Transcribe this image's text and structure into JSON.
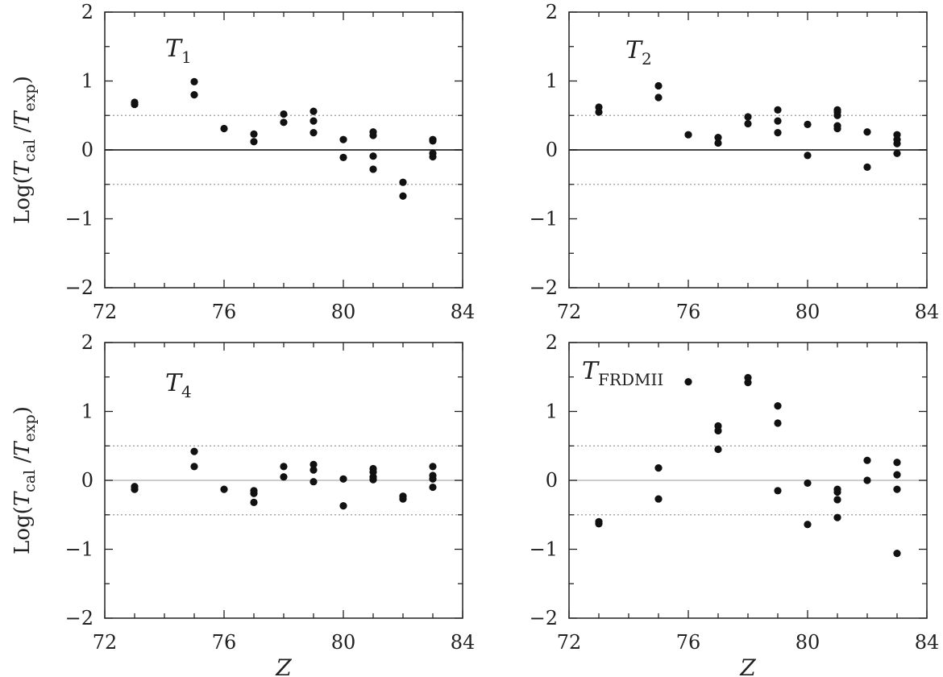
{
  "figure": {
    "ylabel_parts": {
      "pre": "Log(",
      "T1": "T",
      "s1": "cal",
      "mid": " /",
      "T2": "T",
      "s2": "exp",
      "post": ")"
    },
    "xlabel": "Z"
  },
  "chart_data": [
    {
      "type": "scatter",
      "title": {
        "main": "T",
        "sub": "1"
      },
      "xlim": [
        72,
        84
      ],
      "ylim": [
        -2,
        2
      ],
      "xticks": [
        72,
        76,
        80,
        84
      ],
      "yticks": [
        -2,
        -1,
        0,
        1,
        2
      ],
      "ytick_labels": [
        "−2",
        "−1",
        "0",
        "1",
        "2"
      ],
      "ref_lines": {
        "zero": 0,
        "dotted": [
          0.5,
          -0.5
        ],
        "zero_style": "solid-dark"
      },
      "points": [
        [
          73,
          0.66
        ],
        [
          73,
          0.69
        ],
        [
          75,
          0.8
        ],
        [
          75,
          0.99
        ],
        [
          76,
          0.31
        ],
        [
          77,
          0.12
        ],
        [
          77,
          0.23
        ],
        [
          78,
          0.4
        ],
        [
          78,
          0.52
        ],
        [
          79,
          0.25
        ],
        [
          79,
          0.42
        ],
        [
          79,
          0.56
        ],
        [
          80,
          0.15
        ],
        [
          80,
          -0.11
        ],
        [
          81,
          0.26
        ],
        [
          81,
          0.21
        ],
        [
          81,
          -0.09
        ],
        [
          81,
          -0.28
        ],
        [
          82,
          -0.47
        ],
        [
          82,
          -0.67
        ],
        [
          83,
          0.15
        ],
        [
          83,
          0.13
        ],
        [
          83,
          -0.05
        ],
        [
          83,
          -0.1
        ]
      ]
    },
    {
      "type": "scatter",
      "title": {
        "main": "T",
        "sub": "2"
      },
      "xlim": [
        72,
        84
      ],
      "ylim": [
        -2,
        2
      ],
      "xticks": [
        72,
        76,
        80,
        84
      ],
      "yticks": [
        -2,
        -1,
        0,
        1,
        2
      ],
      "ytick_labels": [
        "−2",
        "−1",
        "0",
        "1",
        "2"
      ],
      "ref_lines": {
        "zero": 0,
        "dotted": [
          0.5,
          -0.5
        ],
        "zero_style": "solid-dark"
      },
      "points": [
        [
          73,
          0.55
        ],
        [
          73,
          0.62
        ],
        [
          75,
          0.76
        ],
        [
          75,
          0.93
        ],
        [
          76,
          0.22
        ],
        [
          77,
          0.1
        ],
        [
          77,
          0.18
        ],
        [
          78,
          0.38
        ],
        [
          78,
          0.48
        ],
        [
          79,
          0.25
        ],
        [
          79,
          0.42
        ],
        [
          79,
          0.58
        ],
        [
          80,
          0.37
        ],
        [
          80,
          -0.08
        ],
        [
          81,
          0.58
        ],
        [
          81,
          0.55
        ],
        [
          81,
          0.5
        ],
        [
          81,
          0.35
        ],
        [
          81,
          0.31
        ],
        [
          82,
          0.26
        ],
        [
          82,
          -0.25
        ],
        [
          83,
          0.22
        ],
        [
          83,
          0.15
        ],
        [
          83,
          0.09
        ],
        [
          83,
          -0.05
        ]
      ]
    },
    {
      "type": "scatter",
      "title": {
        "main": "T",
        "sub": "4"
      },
      "xlim": [
        72,
        84
      ],
      "ylim": [
        -2,
        2
      ],
      "xticks": [
        72,
        76,
        80,
        84
      ],
      "yticks": [
        -2,
        -1,
        0,
        1,
        2
      ],
      "ytick_labels": [
        "−2",
        "−1",
        "0",
        "1",
        "2"
      ],
      "ref_lines": {
        "zero": 0,
        "dotted": [
          0.5,
          -0.5
        ],
        "zero_style": "solid-light"
      },
      "points": [
        [
          73,
          -0.09
        ],
        [
          73,
          -0.13
        ],
        [
          75,
          0.42
        ],
        [
          75,
          0.2
        ],
        [
          76,
          -0.13
        ],
        [
          77,
          -0.15
        ],
        [
          77,
          -0.19
        ],
        [
          77,
          -0.32
        ],
        [
          78,
          0.2
        ],
        [
          78,
          0.05
        ],
        [
          79,
          0.23
        ],
        [
          79,
          0.15
        ],
        [
          79,
          -0.02
        ],
        [
          80,
          0.02
        ],
        [
          80,
          -0.37
        ],
        [
          81,
          0.17
        ],
        [
          81,
          0.12
        ],
        [
          81,
          0.05
        ],
        [
          81,
          0.01
        ],
        [
          82,
          -0.23
        ],
        [
          82,
          -0.27
        ],
        [
          83,
          0.2
        ],
        [
          83,
          0.07
        ],
        [
          83,
          0.02
        ],
        [
          83,
          -0.1
        ]
      ]
    },
    {
      "type": "scatter",
      "title": {
        "main": "T",
        "sub": "FRDMII"
      },
      "xlim": [
        72,
        84
      ],
      "ylim": [
        -2,
        2
      ],
      "xticks": [
        72,
        76,
        80,
        84
      ],
      "yticks": [
        -2,
        -1,
        0,
        1,
        2
      ],
      "ytick_labels": [
        "−2",
        "−1",
        "0",
        "1",
        "2"
      ],
      "ref_lines": {
        "zero": 0,
        "dotted": [
          0.5,
          -0.5
        ],
        "zero_style": "solid-light"
      },
      "points": [
        [
          73,
          -0.6
        ],
        [
          73,
          -0.63
        ],
        [
          75,
          0.18
        ],
        [
          75,
          -0.27
        ],
        [
          76,
          1.43
        ],
        [
          77,
          0.79
        ],
        [
          77,
          0.72
        ],
        [
          77,
          0.45
        ],
        [
          78,
          1.49
        ],
        [
          78,
          1.42
        ],
        [
          79,
          1.08
        ],
        [
          79,
          0.83
        ],
        [
          79,
          -0.15
        ],
        [
          80,
          -0.04
        ],
        [
          80,
          -0.64
        ],
        [
          81,
          -0.13
        ],
        [
          81,
          -0.17
        ],
        [
          81,
          -0.28
        ],
        [
          81,
          -0.54
        ],
        [
          82,
          0.29
        ],
        [
          82,
          0.0
        ],
        [
          83,
          0.26
        ],
        [
          83,
          0.08
        ],
        [
          83,
          -0.13
        ],
        [
          83,
          -1.06
        ]
      ]
    }
  ]
}
